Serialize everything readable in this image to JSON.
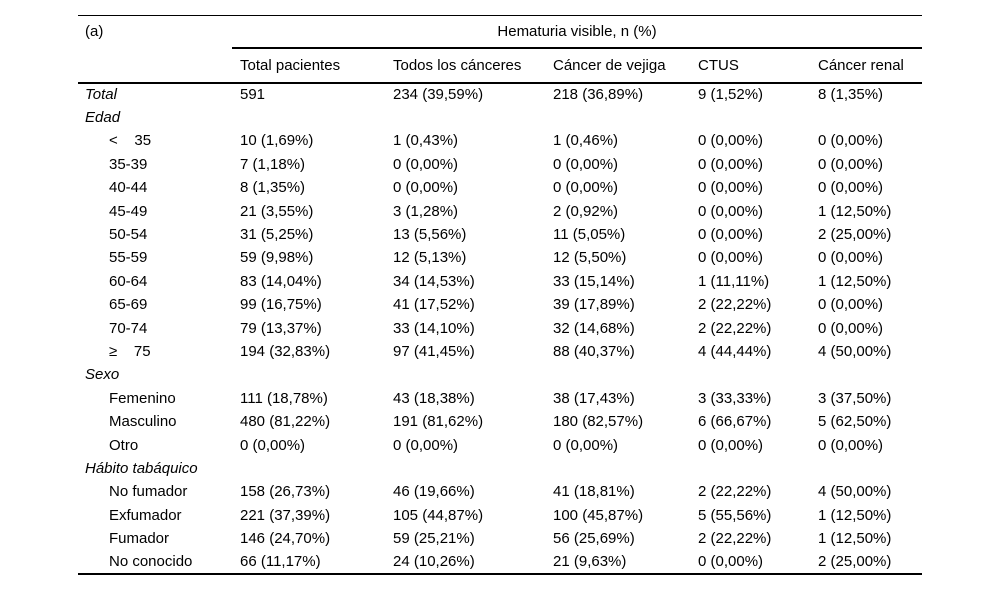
{
  "header": {
    "panel_label": "(a)",
    "spanner": "Hematuria visible, n (%)"
  },
  "columns": [
    "Total pacientes",
    "Todos los cánceres",
    "Cáncer de vejiga",
    "CTUS",
    "Cáncer renal"
  ],
  "rows": [
    {
      "label": "Total",
      "style": "section",
      "values": [
        "591",
        "234 (39,59%)",
        "218 (36,89%)",
        "9 (1,52%)",
        "8 (1,35%)"
      ]
    },
    {
      "label": "Edad",
      "style": "section",
      "values": [
        "",
        "",
        "",
        "",
        ""
      ]
    },
    {
      "label": "<    35",
      "style": "sub",
      "values": [
        "10 (1,69%)",
        "1 (0,43%)",
        "1 (0,46%)",
        "0 (0,00%)",
        "0 (0,00%)"
      ]
    },
    {
      "label": "35-39",
      "style": "sub",
      "values": [
        "7 (1,18%)",
        "0 (0,00%)",
        "0 (0,00%)",
        "0 (0,00%)",
        "0 (0,00%)"
      ]
    },
    {
      "label": "40-44",
      "style": "sub",
      "values": [
        "8 (1,35%)",
        "0 (0,00%)",
        "0 (0,00%)",
        "0 (0,00%)",
        "0 (0,00%)"
      ]
    },
    {
      "label": "45-49",
      "style": "sub",
      "values": [
        "21 (3,55%)",
        "3 (1,28%)",
        "2 (0,92%)",
        "0 (0,00%)",
        "1 (12,50%)"
      ]
    },
    {
      "label": "50-54",
      "style": "sub",
      "values": [
        "31 (5,25%)",
        "13 (5,56%)",
        "11 (5,05%)",
        "0 (0,00%)",
        "2 (25,00%)"
      ]
    },
    {
      "label": "55-59",
      "style": "sub",
      "values": [
        "59 (9,98%)",
        "12 (5,13%)",
        "12 (5,50%)",
        "0 (0,00%)",
        "0 (0,00%)"
      ]
    },
    {
      "label": "60-64",
      "style": "sub",
      "values": [
        "83 (14,04%)",
        "34 (14,53%)",
        "33 (15,14%)",
        "1 (11,11%)",
        "1 (12,50%)"
      ]
    },
    {
      "label": "65-69",
      "style": "sub",
      "values": [
        "99 (16,75%)",
        "41 (17,52%)",
        "39 (17,89%)",
        "2 (22,22%)",
        "0 (0,00%)"
      ]
    },
    {
      "label": "70-74",
      "style": "sub",
      "values": [
        "79 (13,37%)",
        "33 (14,10%)",
        "32 (14,68%)",
        "2 (22,22%)",
        "0 (0,00%)"
      ]
    },
    {
      "label": "≥    75",
      "style": "sub",
      "values": [
        "194 (32,83%)",
        "97 (41,45%)",
        "88 (40,37%)",
        "4 (44,44%)",
        "4 (50,00%)"
      ]
    },
    {
      "label": "Sexo",
      "style": "section",
      "values": [
        "",
        "",
        "",
        "",
        ""
      ]
    },
    {
      "label": "Femenino",
      "style": "sub",
      "values": [
        "111 (18,78%)",
        "43 (18,38%)",
        "38 (17,43%)",
        "3 (33,33%)",
        "3 (37,50%)"
      ]
    },
    {
      "label": "Masculino",
      "style": "sub",
      "values": [
        "480 (81,22%)",
        "191 (81,62%)",
        "180 (82,57%)",
        "6 (66,67%)",
        "5 (62,50%)"
      ]
    },
    {
      "label": "Otro",
      "style": "sub",
      "values": [
        "0 (0,00%)",
        "0 (0,00%)",
        "0 (0,00%)",
        "0 (0,00%)",
        "0 (0,00%)"
      ]
    },
    {
      "label": "Hábito tabáquico",
      "style": "section",
      "values": [
        "",
        "",
        "",
        "",
        ""
      ]
    },
    {
      "label": "No fumador",
      "style": "sub",
      "values": [
        "158 (26,73%)",
        "46 (19,66%)",
        "41 (18,81%)",
        "2 (22,22%)",
        "4 (50,00%)"
      ]
    },
    {
      "label": "Exfumador",
      "style": "sub",
      "values": [
        "221 (37,39%)",
        "105 (44,87%)",
        "100 (45,87%)",
        "5 (55,56%)",
        "1 (12,50%)"
      ]
    },
    {
      "label": "Fumador",
      "style": "sub",
      "values": [
        "146 (24,70%)",
        "59 (25,21%)",
        "56 (25,69%)",
        "2 (22,22%)",
        "1 (12,50%)"
      ]
    },
    {
      "label": "No conocido",
      "style": "sub",
      "values": [
        "66 (11,17%)",
        "24 (10,26%)",
        "21 (9,63%)",
        "0 (0,00%)",
        "2 (25,00%)"
      ]
    }
  ],
  "colors": {
    "text": "#000000",
    "rule": "#000000",
    "background": "#ffffff"
  }
}
